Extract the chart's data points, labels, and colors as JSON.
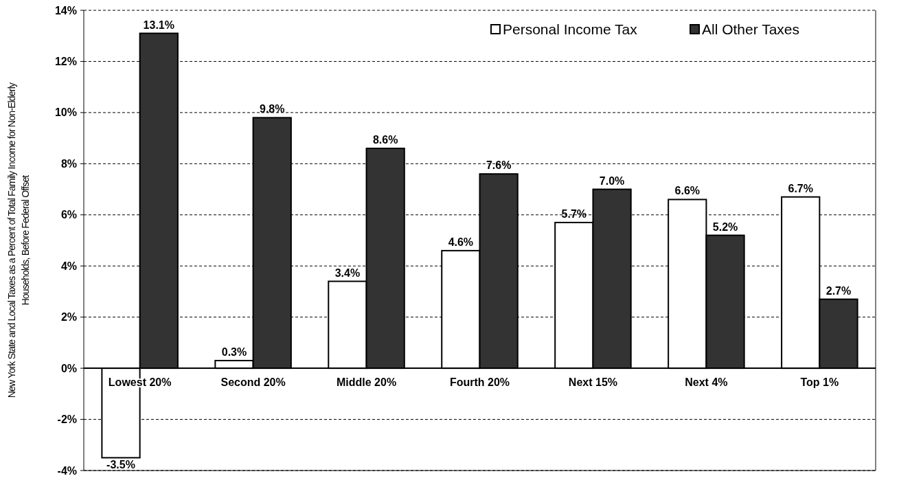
{
  "chart_data": {
    "type": "bar",
    "ylabel": "New York State and Local Taxes as a Percent of Total Family Income for Non-Elderly Households, Before Federal Offset",
    "categories": [
      "Lowest 20%",
      "Second 20%",
      "Middle 20%",
      "Fourth 20%",
      "Next 15%",
      "Next 4%",
      "Top 1%"
    ],
    "series": [
      {
        "name": "Personal Income Tax",
        "color": "#ffffff",
        "values": [
          -3.5,
          0.3,
          3.4,
          4.6,
          5.7,
          6.6,
          6.7
        ],
        "value_labels": [
          "-3.5%",
          "0.3%",
          "3.4%",
          "4.6%",
          "5.7%",
          "6.6%",
          "6.7%"
        ]
      },
      {
        "name": "All Other Taxes",
        "color": "#333333",
        "values": [
          13.1,
          9.8,
          8.6,
          7.6,
          7.0,
          5.2,
          2.7
        ],
        "value_labels": [
          "13.1%",
          "9.8%",
          "8.6%",
          "7.6%",
          "7.0%",
          "5.2%",
          "2.7%"
        ]
      }
    ],
    "ylim": [
      -4,
      14
    ],
    "yticks": [
      {
        "value": -4,
        "label": "-4%"
      },
      {
        "value": -2,
        "label": "-2%"
      },
      {
        "value": 0,
        "label": "0%"
      },
      {
        "value": 2,
        "label": "2%"
      },
      {
        "value": 4,
        "label": "4%"
      },
      {
        "value": 6,
        "label": "6%"
      },
      {
        "value": 8,
        "label": "8%"
      },
      {
        "value": 10,
        "label": "10%"
      },
      {
        "value": 12,
        "label": "12%"
      },
      {
        "value": 14,
        "label": "14%"
      }
    ],
    "grid": "y",
    "legend": "top right"
  }
}
